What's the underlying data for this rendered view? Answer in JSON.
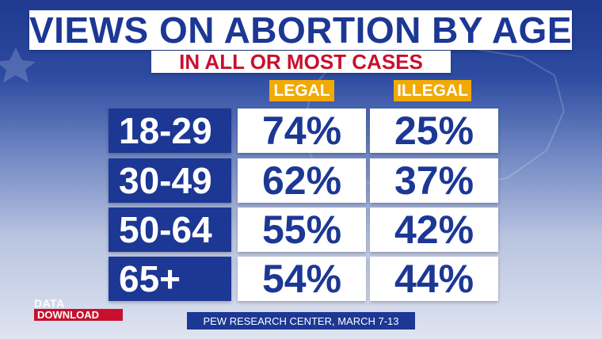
{
  "title": "VIEWS ON ABORTION BY AGE",
  "subtitle": "IN ALL OR MOST CASES",
  "columns": {
    "legal": "LEGAL",
    "illegal": "ILLEGAL"
  },
  "rows": [
    {
      "age": "18-29",
      "legal": "74%",
      "illegal": "25%"
    },
    {
      "age": "30-49",
      "legal": "62%",
      "illegal": "37%"
    },
    {
      "age": "50-64",
      "legal": "55%",
      "illegal": "42%"
    },
    {
      "age": "65+",
      "legal": "54%",
      "illegal": "44%"
    }
  ],
  "logo": {
    "top": "DATA",
    "bottom": "DOWNLOAD"
  },
  "source": "PEW RESEARCH CENTER, MARCH 7-13",
  "colors": {
    "navy": "#1c3794",
    "red": "#c8102e",
    "gold": "#f2a900"
  }
}
